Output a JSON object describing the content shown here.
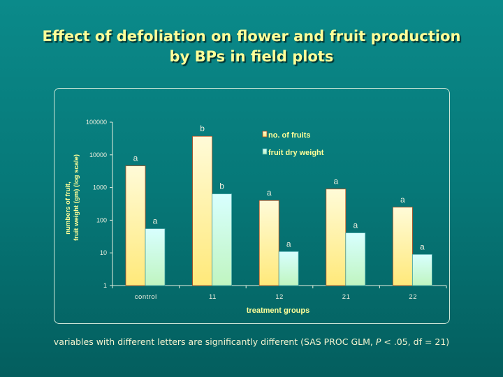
{
  "title_line1": "Effect of defoliation on flower and fruit production",
  "title_line2": "by BPs in field plots",
  "footnote_pre": "variables with different letters are significantly different (SAS PROC GLM, ",
  "footnote_p": "P",
  "footnote_post": " < .05, df = 21)",
  "chart_data": {
    "type": "bar",
    "title": "Effect of defoliation on flower and fruit production by BPs in field plots",
    "xlabel": "treatment groups",
    "ylabel_line1": "numbers of fruit,",
    "ylabel_line2": "fruit weight (gm) (log scale)",
    "yscale": "log",
    "ylim": [
      1,
      100000
    ],
    "yticks": [
      "1",
      "10",
      "100",
      "1000",
      "10000",
      "100000"
    ],
    "categories": [
      "control",
      "11",
      "12",
      "21",
      "22"
    ],
    "legend_position": "top-right",
    "grid": false,
    "series": [
      {
        "name": "no. of fruits",
        "color": "#fff3a0",
        "values": [
          4600,
          37000,
          400,
          900,
          250
        ],
        "letters": [
          "a",
          "b",
          "a",
          "a",
          "a"
        ]
      },
      {
        "name": "fruit dry weight",
        "color": "#c8fff0",
        "values": [
          55,
          640,
          11,
          41,
          9
        ],
        "letters": [
          "a",
          "b",
          "a",
          "a",
          "a"
        ]
      }
    ]
  }
}
